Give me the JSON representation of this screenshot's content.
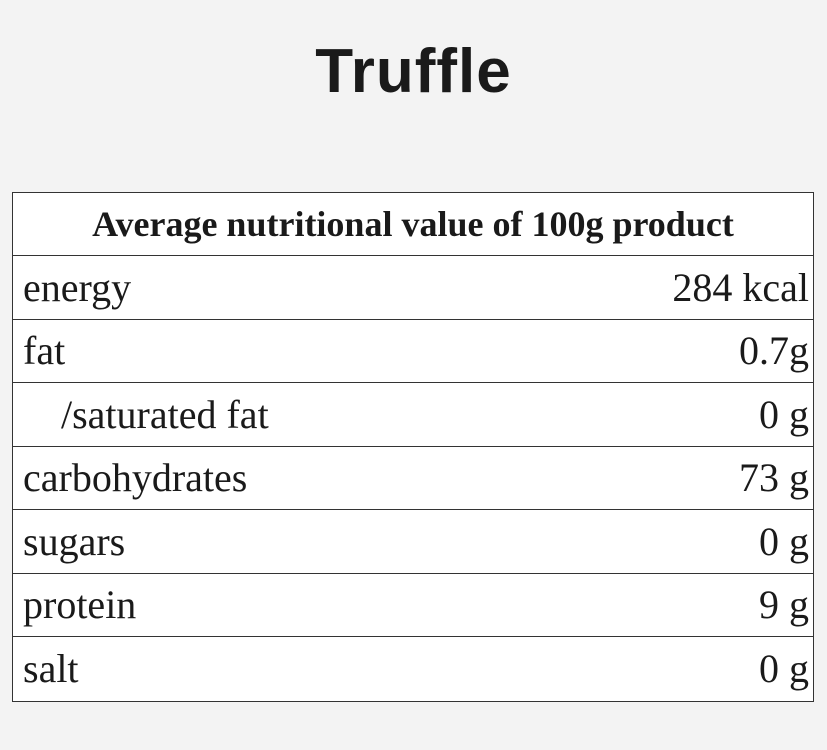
{
  "product": {
    "name": "Truffle"
  },
  "nutrition": {
    "header": "Average nutritional value of 100g product",
    "rows": [
      {
        "label": "energy",
        "value": "284 kcal"
      },
      {
        "label": "fat",
        "value": "0.7g"
      },
      {
        "label": "/saturated fat",
        "value": "0 g"
      },
      {
        "label": "carbohydrates",
        "value": "73 g"
      },
      {
        "label": "sugars",
        "value": "0 g"
      },
      {
        "label": "protein",
        "value": "9 g"
      },
      {
        "label": "salt",
        "value": "0 g"
      }
    ]
  }
}
